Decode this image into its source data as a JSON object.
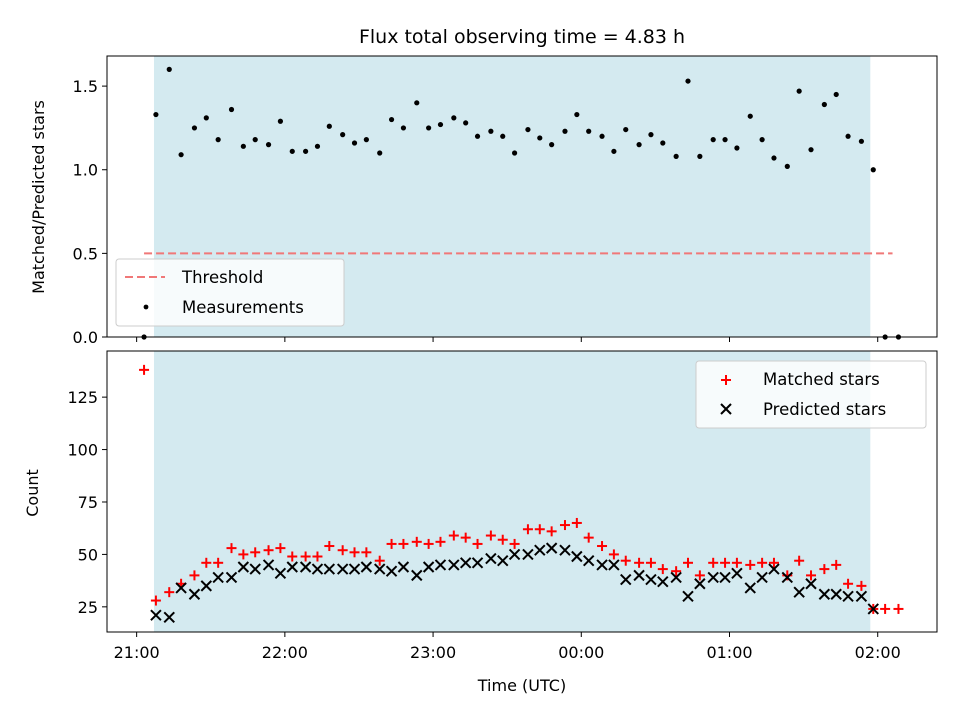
{
  "chart_data": [
    {
      "type": "scatter",
      "title": "Flux total observing time = 4.83 h",
      "xlabel": "",
      "ylabel": "Matched/Predicted stars",
      "x_unit": "hours since 21:00 UTC",
      "xlim": [
        -0.2,
        5.4
      ],
      "ylim": [
        0,
        1.68
      ],
      "yticks": [
        0.0,
        0.5,
        1.0,
        1.5
      ],
      "ytick_labels": [
        "0.0",
        "0.5",
        "1.0",
        "1.5"
      ],
      "observing_window": [
        0.117,
        4.95
      ],
      "observing_window_color": "#d4eaf0",
      "threshold": {
        "name": "Threshold",
        "y": 0.5,
        "x_range": [
          0.05,
          5.1
        ],
        "color": "#f07878"
      },
      "legend": {
        "position": "lower-left",
        "entries": [
          "Threshold",
          "Measurements"
        ]
      },
      "series": [
        {
          "name": "Measurements",
          "color": "#000000",
          "points": [
            [
              0.05,
              0.0
            ],
            [
              0.13,
              1.33
            ],
            [
              0.22,
              1.6
            ],
            [
              0.3,
              1.09
            ],
            [
              0.39,
              1.25
            ],
            [
              0.47,
              1.31
            ],
            [
              0.55,
              1.18
            ],
            [
              0.64,
              1.36
            ],
            [
              0.72,
              1.14
            ],
            [
              0.8,
              1.18
            ],
            [
              0.89,
              1.15
            ],
            [
              0.97,
              1.29
            ],
            [
              1.05,
              1.11
            ],
            [
              1.14,
              1.11
            ],
            [
              1.22,
              1.14
            ],
            [
              1.3,
              1.26
            ],
            [
              1.39,
              1.21
            ],
            [
              1.47,
              1.16
            ],
            [
              1.55,
              1.18
            ],
            [
              1.64,
              1.1
            ],
            [
              1.72,
              1.3
            ],
            [
              1.8,
              1.25
            ],
            [
              1.89,
              1.4
            ],
            [
              1.97,
              1.25
            ],
            [
              2.05,
              1.27
            ],
            [
              2.14,
              1.31
            ],
            [
              2.22,
              1.28
            ],
            [
              2.3,
              1.2
            ],
            [
              2.39,
              1.23
            ],
            [
              2.47,
              1.2
            ],
            [
              2.55,
              1.1
            ],
            [
              2.64,
              1.24
            ],
            [
              2.72,
              1.19
            ],
            [
              2.8,
              1.15
            ],
            [
              2.89,
              1.23
            ],
            [
              2.97,
              1.33
            ],
            [
              3.05,
              1.23
            ],
            [
              3.14,
              1.2
            ],
            [
              3.22,
              1.11
            ],
            [
              3.3,
              1.24
            ],
            [
              3.39,
              1.15
            ],
            [
              3.47,
              1.21
            ],
            [
              3.55,
              1.16
            ],
            [
              3.64,
              1.08
            ],
            [
              3.72,
              1.53
            ],
            [
              3.8,
              1.08
            ],
            [
              3.89,
              1.18
            ],
            [
              3.97,
              1.18
            ],
            [
              4.05,
              1.13
            ],
            [
              4.14,
              1.32
            ],
            [
              4.22,
              1.18
            ],
            [
              4.3,
              1.07
            ],
            [
              4.39,
              1.02
            ],
            [
              4.47,
              1.47
            ],
            [
              4.55,
              1.12
            ],
            [
              4.64,
              1.39
            ],
            [
              4.72,
              1.45
            ],
            [
              4.8,
              1.2
            ],
            [
              4.89,
              1.17
            ],
            [
              4.97,
              1.0
            ],
            [
              5.05,
              0.0
            ],
            [
              5.14,
              0.0
            ]
          ]
        }
      ]
    },
    {
      "type": "scatter",
      "title": "",
      "xlabel": "Time (UTC)",
      "ylabel": "Count",
      "x_unit": "hours since 21:00 UTC",
      "xlim": [
        -0.2,
        5.4
      ],
      "ylim": [
        13,
        147
      ],
      "xticks": [
        0,
        1,
        2,
        3,
        4,
        5
      ],
      "xtick_labels": [
        "21:00",
        "22:00",
        "23:00",
        "00:00",
        "01:00",
        "02:00"
      ],
      "yticks": [
        25,
        50,
        75,
        100,
        125
      ],
      "ytick_labels": [
        "25",
        "50",
        "75",
        "100",
        "125"
      ],
      "observing_window": [
        0.117,
        4.95
      ],
      "observing_window_color": "#d4eaf0",
      "legend": {
        "position": "top-right",
        "entries": [
          "Matched stars",
          "Predicted stars"
        ]
      },
      "series": [
        {
          "name": "Matched stars",
          "marker": "plus",
          "color": "#ff0000",
          "points": [
            [
              0.05,
              138
            ],
            [
              0.13,
              28
            ],
            [
              0.22,
              32
            ],
            [
              0.3,
              36
            ],
            [
              0.39,
              40
            ],
            [
              0.47,
              46
            ],
            [
              0.55,
              46
            ],
            [
              0.64,
              53
            ],
            [
              0.72,
              50
            ],
            [
              0.8,
              51
            ],
            [
              0.89,
              52
            ],
            [
              0.97,
              53
            ],
            [
              1.05,
              49
            ],
            [
              1.14,
              49
            ],
            [
              1.22,
              49
            ],
            [
              1.3,
              54
            ],
            [
              1.39,
              52
            ],
            [
              1.47,
              51
            ],
            [
              1.55,
              51
            ],
            [
              1.64,
              47
            ],
            [
              1.72,
              55
            ],
            [
              1.8,
              55
            ],
            [
              1.89,
              56
            ],
            [
              1.97,
              55
            ],
            [
              2.05,
              56
            ],
            [
              2.14,
              59
            ],
            [
              2.22,
              58
            ],
            [
              2.3,
              55
            ],
            [
              2.39,
              59
            ],
            [
              2.47,
              57
            ],
            [
              2.55,
              55
            ],
            [
              2.64,
              62
            ],
            [
              2.72,
              62
            ],
            [
              2.8,
              61
            ],
            [
              2.89,
              64
            ],
            [
              2.97,
              65
            ],
            [
              3.05,
              58
            ],
            [
              3.14,
              54
            ],
            [
              3.22,
              50
            ],
            [
              3.3,
              47
            ],
            [
              3.39,
              46
            ],
            [
              3.47,
              46
            ],
            [
              3.55,
              43
            ],
            [
              3.64,
              42
            ],
            [
              3.72,
              46
            ],
            [
              3.8,
              40
            ],
            [
              3.89,
              46
            ],
            [
              3.97,
              46
            ],
            [
              4.05,
              46
            ],
            [
              4.14,
              45
            ],
            [
              4.22,
              46
            ],
            [
              4.3,
              46
            ],
            [
              4.39,
              40
            ],
            [
              4.47,
              47
            ],
            [
              4.55,
              40
            ],
            [
              4.64,
              43
            ],
            [
              4.72,
              45
            ],
            [
              4.8,
              36
            ],
            [
              4.89,
              35
            ],
            [
              4.97,
              24
            ],
            [
              5.05,
              24
            ],
            [
              5.14,
              24
            ]
          ]
        },
        {
          "name": "Predicted stars",
          "marker": "x",
          "color": "#000000",
          "points": [
            [
              0.13,
              21
            ],
            [
              0.22,
              20
            ],
            [
              0.3,
              34
            ],
            [
              0.39,
              31
            ],
            [
              0.47,
              35
            ],
            [
              0.55,
              39
            ],
            [
              0.64,
              39
            ],
            [
              0.72,
              44
            ],
            [
              0.8,
              43
            ],
            [
              0.89,
              45
            ],
            [
              0.97,
              41
            ],
            [
              1.05,
              44
            ],
            [
              1.14,
              44
            ],
            [
              1.22,
              43
            ],
            [
              1.3,
              43
            ],
            [
              1.39,
              43
            ],
            [
              1.47,
              43
            ],
            [
              1.55,
              44
            ],
            [
              1.64,
              43
            ],
            [
              1.72,
              42
            ],
            [
              1.8,
              44
            ],
            [
              1.89,
              40
            ],
            [
              1.97,
              44
            ],
            [
              2.05,
              45
            ],
            [
              2.14,
              45
            ],
            [
              2.22,
              46
            ],
            [
              2.3,
              46
            ],
            [
              2.39,
              48
            ],
            [
              2.47,
              47
            ],
            [
              2.55,
              50
            ],
            [
              2.64,
              50
            ],
            [
              2.72,
              52
            ],
            [
              2.8,
              53
            ],
            [
              2.89,
              52
            ],
            [
              2.97,
              49
            ],
            [
              3.05,
              47
            ],
            [
              3.14,
              45
            ],
            [
              3.22,
              45
            ],
            [
              3.3,
              38
            ],
            [
              3.39,
              40
            ],
            [
              3.47,
              38
            ],
            [
              3.55,
              37
            ],
            [
              3.64,
              39
            ],
            [
              3.72,
              30
            ],
            [
              3.8,
              36
            ],
            [
              3.89,
              39
            ],
            [
              3.97,
              39
            ],
            [
              4.05,
              41
            ],
            [
              4.14,
              34
            ],
            [
              4.22,
              39
            ],
            [
              4.3,
              43
            ],
            [
              4.39,
              39
            ],
            [
              4.47,
              32
            ],
            [
              4.55,
              36
            ],
            [
              4.64,
              31
            ],
            [
              4.72,
              31
            ],
            [
              4.8,
              30
            ],
            [
              4.89,
              30
            ],
            [
              4.97,
              24
            ]
          ]
        }
      ]
    }
  ]
}
